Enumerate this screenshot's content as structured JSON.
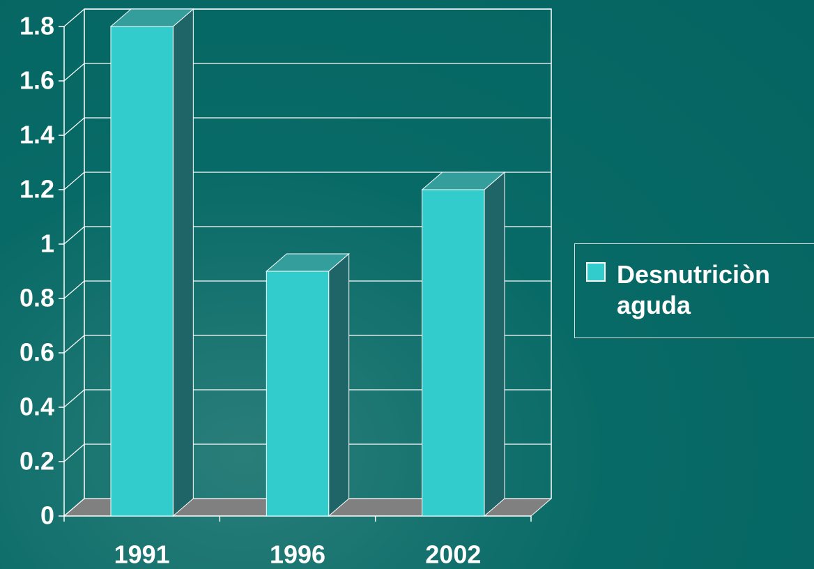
{
  "chart_data": {
    "type": "bar3d",
    "categories": [
      "1991",
      "1996",
      "2002"
    ],
    "series": [
      {
        "name": "Desnutriciòn aguda",
        "color": "#33cccc",
        "values": [
          1.8,
          0.9,
          1.2
        ]
      }
    ],
    "ylim": [
      0,
      1.8
    ],
    "yticks": [
      0,
      0.2,
      0.4,
      0.6,
      0.8,
      1,
      1.2,
      1.4,
      1.6,
      1.8
    ],
    "grid": true,
    "legend": "right"
  }
}
